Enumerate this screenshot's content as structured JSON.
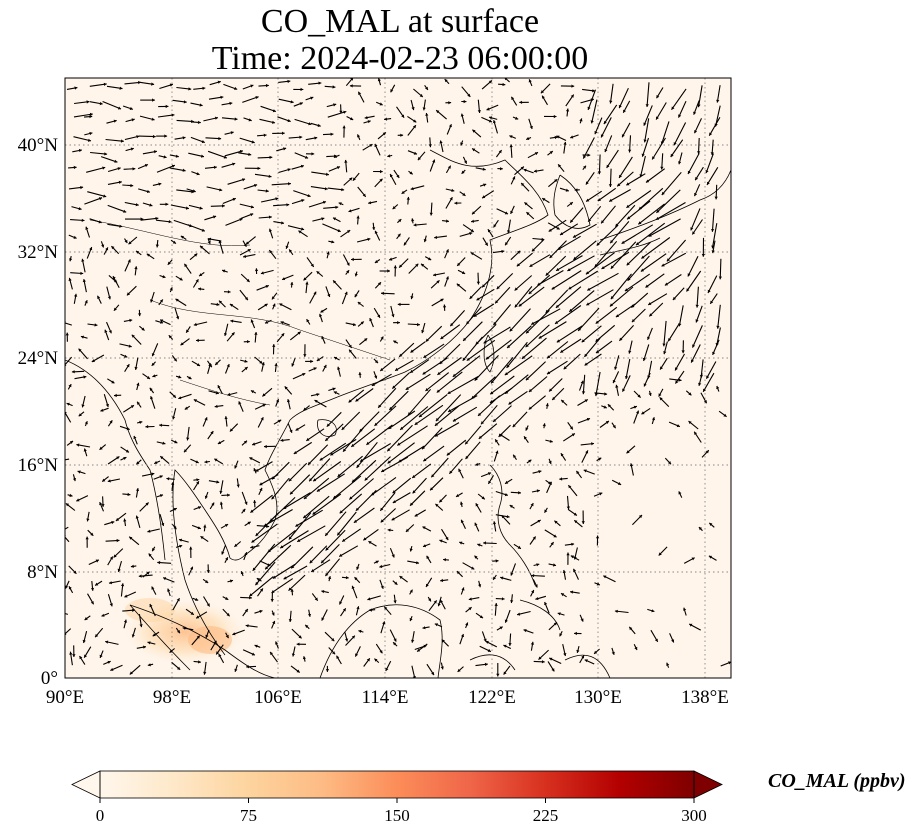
{
  "title": {
    "line1": "CO_MAL at surface",
    "line2": "Time: 2024-02-23 06:00:00"
  },
  "map": {
    "type": "wind-vector field over concentration shading",
    "projection": "PlateCarree",
    "lon_range": [
      90,
      140
    ],
    "lat_range": [
      0,
      45
    ],
    "gridlines": "dotted gray",
    "lon_ticks": [
      "90°E",
      "98°E",
      "106°E",
      "114°E",
      "122°E",
      "130°E",
      "138°E"
    ],
    "lat_ticks": [
      "0°",
      "8°N",
      "16°N",
      "24°N",
      "32°N",
      "40°N"
    ],
    "background_color": "#fff5eb",
    "highlights": [
      {
        "region": "Sumatra / Strait of Malacca",
        "approx_lon": 100,
        "approx_lat": 3,
        "level": "low-moderate"
      }
    ]
  },
  "colorbar": {
    "label": "CO_MAL (ppbv)",
    "colormap": "OrRd",
    "range": [
      0,
      300
    ],
    "extend": "both",
    "ticks": [
      "0",
      "75",
      "150",
      "225",
      "300"
    ],
    "colors": [
      "#fff7ec",
      "#fee8c8",
      "#fdd49e",
      "#fdbb84",
      "#fc8d59",
      "#ef6548",
      "#d7301f",
      "#b30000",
      "#7f0000"
    ]
  }
}
